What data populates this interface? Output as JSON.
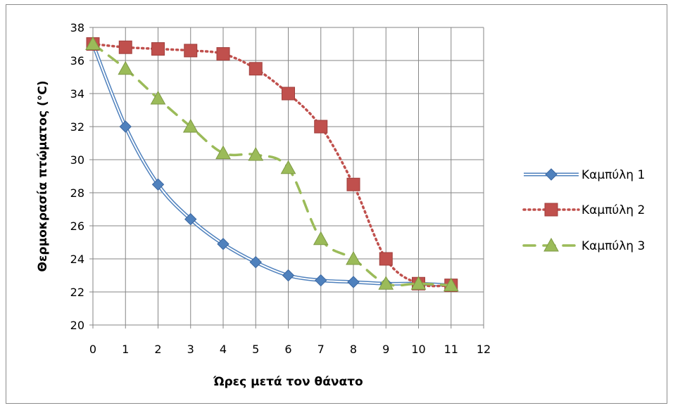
{
  "chart_data": {
    "type": "line",
    "xlabel": "Ώρες μετά τον θάνατο",
    "ylabel": "Θερμοκρασία πτώματος (°C)",
    "xlim": [
      0,
      12
    ],
    "ylim": [
      20,
      38
    ],
    "x_ticks": [
      0,
      1,
      2,
      3,
      4,
      5,
      6,
      7,
      8,
      9,
      10,
      11,
      12
    ],
    "y_ticks": [
      20,
      22,
      24,
      26,
      28,
      30,
      32,
      34,
      36,
      38
    ],
    "grid": true,
    "legend_position": "right",
    "series": [
      {
        "name": "Καμπύλη 1",
        "color": "#4f81bd",
        "marker": "diamond",
        "line_style": "double-smooth",
        "x": [
          0,
          1,
          2,
          3,
          4,
          5,
          6,
          7,
          8,
          9,
          10,
          11
        ],
        "values": [
          37,
          32,
          28.5,
          26.4,
          24.9,
          23.8,
          23.0,
          22.7,
          22.6,
          22.5,
          22.5,
          22.4
        ]
      },
      {
        "name": "Καμπύλη 2",
        "color": "#c0504d",
        "marker": "square",
        "line_style": "dotted",
        "x": [
          0,
          1,
          2,
          3,
          4,
          5,
          6,
          7,
          8,
          9,
          10,
          11
        ],
        "values": [
          37,
          36.8,
          36.7,
          36.6,
          36.4,
          35.5,
          34,
          32,
          28.5,
          24,
          22.5,
          22.4
        ]
      },
      {
        "name": "Καμπύλη 3",
        "color": "#9bbb59",
        "marker": "triangle",
        "line_style": "dashed",
        "x": [
          0,
          1,
          2,
          3,
          4,
          5,
          6,
          7,
          8,
          9,
          10,
          11
        ],
        "values": [
          37,
          35.5,
          33.7,
          32,
          30.4,
          30.3,
          29.5,
          25.2,
          24,
          22.5,
          22.5,
          22.4
        ]
      }
    ]
  }
}
